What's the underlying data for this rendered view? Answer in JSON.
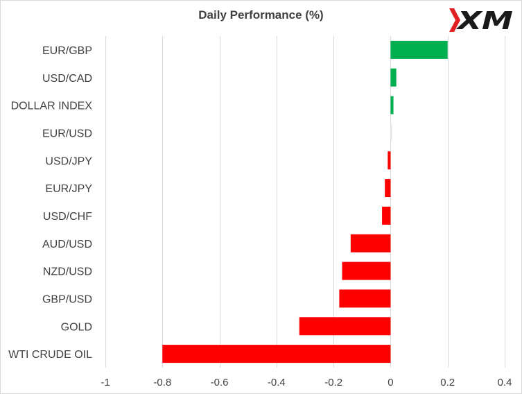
{
  "chart_data": {
    "type": "bar",
    "orientation": "horizontal",
    "title": "Daily Performance (%)",
    "categories": [
      "EUR/GBP",
      "USD/CAD",
      "DOLLAR INDEX",
      "EUR/USD",
      "USD/JPY",
      "EUR/JPY",
      "USD/CHF",
      "AUD/USD",
      "NZD/USD",
      "GBP/USD",
      "GOLD",
      "WTI CRUDE OIL"
    ],
    "values": [
      0.2,
      0.02,
      0.01,
      0.0,
      -0.01,
      -0.02,
      -0.03,
      -0.14,
      -0.17,
      -0.18,
      -0.32,
      -0.8
    ],
    "xlim": [
      -1,
      0.4
    ],
    "xticks": [
      -1,
      -0.8,
      -0.6,
      -0.4,
      -0.2,
      0,
      0.2,
      0.4
    ],
    "xtick_labels": [
      "-1",
      "-0.8",
      "-0.6",
      "-0.4",
      "-0.2",
      "0",
      "0.2",
      "0.4"
    ],
    "grid": "vertical",
    "legend": "none",
    "colors": {
      "positive": "#00b050",
      "negative": "#ff0000",
      "zero": "#e6e6e6",
      "grid": "#d9d9d9",
      "text": "#404040"
    }
  },
  "logo": {
    "text": "XM",
    "mark_color": "#e02020",
    "text_color": "#1a1a1a"
  }
}
